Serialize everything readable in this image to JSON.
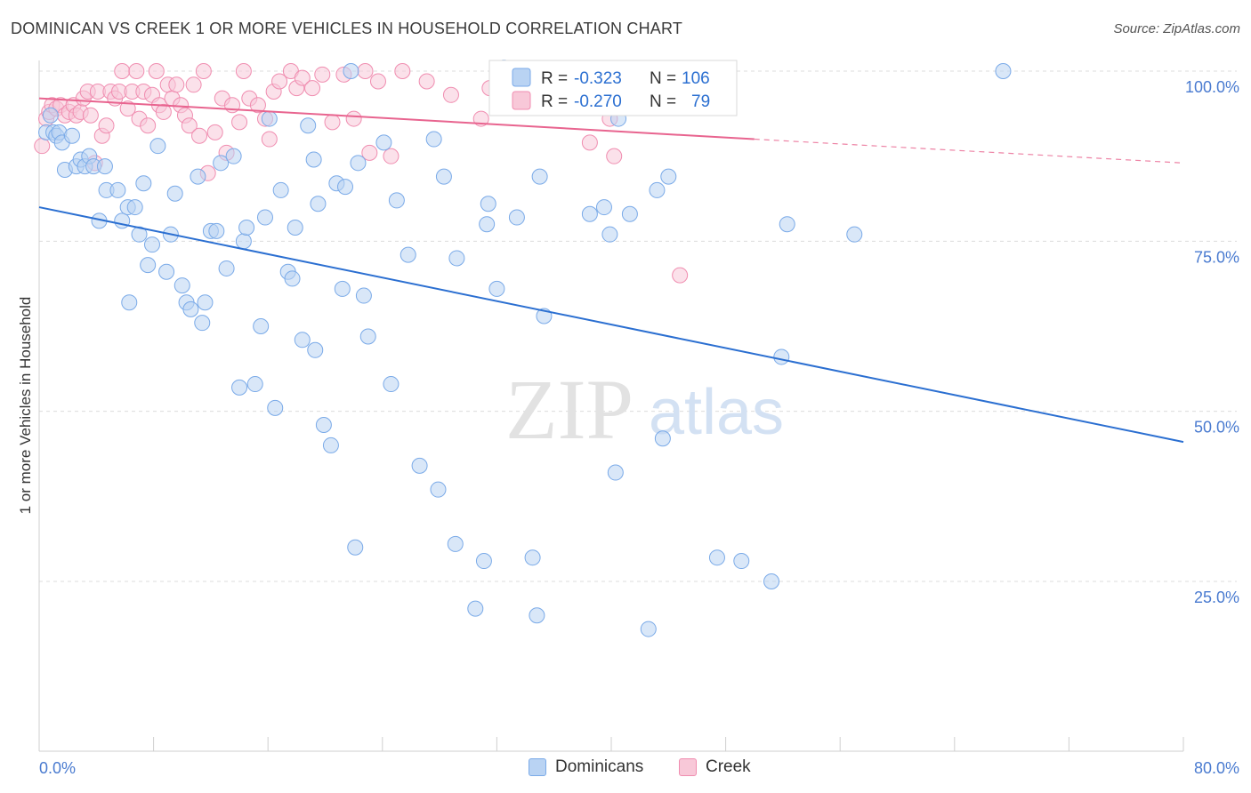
{
  "header": {
    "title": "DOMINICAN VS CREEK 1 OR MORE VEHICLES IN HOUSEHOLD CORRELATION CHART",
    "source": "Source: ZipAtlas.com"
  },
  "watermark": {
    "zip": "ZIP",
    "atlas": "atlas"
  },
  "legend_box": {
    "rows": [
      {
        "r_label": "R =",
        "r_value": "-0.323",
        "n_label": "N =",
        "n_value": "106"
      },
      {
        "r_label": "R =",
        "r_value": "-0.270",
        "n_label": "N =",
        "n_value": "79"
      }
    ]
  },
  "bottom_legend": {
    "items": [
      "Dominicans",
      "Creek"
    ]
  },
  "chart_data": {
    "type": "scatter",
    "title": "DOMINICAN VS CREEK 1 OR MORE VEHICLES IN HOUSEHOLD CORRELATION CHART",
    "xlabel": "",
    "ylabel": "1 or more Vehicles in Household",
    "xlim": [
      0,
      80
    ],
    "ylim": [
      0,
      105
    ],
    "x_tick_labels": [
      "0.0%",
      "80.0%"
    ],
    "y_tick_labels": [
      "100.0%",
      "75.0%",
      "50.0%",
      "25.0%"
    ],
    "y_tick_values": [
      100,
      75,
      50,
      25
    ],
    "grid": true,
    "legend_placement": "top-center",
    "colors": {
      "Dominicans": "#7aaae8",
      "Dominicans_fill": "#b9d3f3",
      "Dominicans_line": "#2b6fd1",
      "Creek": "#f08db0",
      "Creek_fill": "#f8c8d8",
      "Creek_line": "#e8648f",
      "tick_text": "#4a7bd0"
    },
    "series": [
      {
        "name": "Dominicans",
        "r": -0.323,
        "n": 106,
        "trend": {
          "x": [
            0,
            80
          ],
          "y": [
            80,
            45.5
          ]
        },
        "points": [
          [
            0.5,
            91
          ],
          [
            0.8,
            93.5
          ],
          [
            1.0,
            91
          ],
          [
            1.2,
            90.5
          ],
          [
            1.4,
            91
          ],
          [
            1.6,
            89.5
          ],
          [
            1.8,
            85.5
          ],
          [
            2.3,
            90.5
          ],
          [
            2.6,
            86
          ],
          [
            2.9,
            87
          ],
          [
            3.2,
            86
          ],
          [
            3.5,
            87.5
          ],
          [
            3.8,
            86
          ],
          [
            4.2,
            78
          ],
          [
            4.6,
            86
          ],
          [
            4.7,
            82.5
          ],
          [
            5.5,
            82.5
          ],
          [
            5.8,
            78
          ],
          [
            6.2,
            80
          ],
          [
            6.3,
            66
          ],
          [
            6.7,
            80
          ],
          [
            7.0,
            76
          ],
          [
            7.3,
            83.5
          ],
          [
            7.6,
            71.5
          ],
          [
            7.9,
            74.5
          ],
          [
            8.3,
            89
          ],
          [
            8.9,
            70.5
          ],
          [
            9.2,
            76
          ],
          [
            9.5,
            82
          ],
          [
            10.0,
            68.5
          ],
          [
            10.3,
            66
          ],
          [
            10.6,
            65
          ],
          [
            11.1,
            84.5
          ],
          [
            11.4,
            63
          ],
          [
            11.6,
            66
          ],
          [
            12.0,
            76.5
          ],
          [
            12.4,
            76.5
          ],
          [
            12.7,
            86.5
          ],
          [
            13.1,
            71
          ],
          [
            13.6,
            87.5
          ],
          [
            14.0,
            53.5
          ],
          [
            14.3,
            75
          ],
          [
            14.5,
            77
          ],
          [
            15.1,
            54
          ],
          [
            15.5,
            62.5
          ],
          [
            15.8,
            78.5
          ],
          [
            16.1,
            93
          ],
          [
            16.5,
            50.5
          ],
          [
            16.9,
            82.5
          ],
          [
            17.4,
            70.5
          ],
          [
            17.7,
            69.5
          ],
          [
            17.9,
            77
          ],
          [
            18.4,
            60.5
          ],
          [
            18.8,
            92
          ],
          [
            19.2,
            87
          ],
          [
            19.3,
            59
          ],
          [
            19.5,
            80.5
          ],
          [
            19.9,
            48
          ],
          [
            20.4,
            45
          ],
          [
            20.8,
            83.5
          ],
          [
            21.2,
            68
          ],
          [
            21.4,
            83
          ],
          [
            21.8,
            100
          ],
          [
            22.1,
            30
          ],
          [
            22.3,
            86.5
          ],
          [
            22.7,
            67
          ],
          [
            23.0,
            61
          ],
          [
            24.1,
            89.5
          ],
          [
            24.6,
            54
          ],
          [
            25.0,
            81
          ],
          [
            25.8,
            73
          ],
          [
            26.6,
            42
          ],
          [
            27.6,
            90
          ],
          [
            27.9,
            38.5
          ],
          [
            28.3,
            84.5
          ],
          [
            29.1,
            30.5
          ],
          [
            29.2,
            72.5
          ],
          [
            30.5,
            21
          ],
          [
            31.1,
            28
          ],
          [
            31.3,
            77.5
          ],
          [
            31.4,
            80.5
          ],
          [
            32.0,
            68
          ],
          [
            32.5,
            100.5
          ],
          [
            33.4,
            78.5
          ],
          [
            34.5,
            28.5
          ],
          [
            34.8,
            20
          ],
          [
            35.0,
            84.5
          ],
          [
            35.3,
            64
          ],
          [
            38.5,
            79
          ],
          [
            39.5,
            80
          ],
          [
            39.9,
            76
          ],
          [
            40.3,
            41
          ],
          [
            40.5,
            93
          ],
          [
            41.3,
            79
          ],
          [
            42.6,
            18
          ],
          [
            43.2,
            82.5
          ],
          [
            43.6,
            46
          ],
          [
            44.0,
            84.5
          ],
          [
            47.4,
            28.5
          ],
          [
            49.1,
            28
          ],
          [
            51.2,
            25
          ],
          [
            51.9,
            58
          ],
          [
            52.3,
            77.5
          ],
          [
            57.0,
            76
          ],
          [
            67.4,
            100
          ]
        ]
      },
      {
        "name": "Creek",
        "r": -0.27,
        "n": 79,
        "trend_solid": {
          "x": [
            0,
            50
          ],
          "y": [
            96,
            90
          ]
        },
        "trend_dashed": {
          "x": [
            50,
            80
          ],
          "y": [
            90,
            86.5
          ]
        },
        "points": [
          [
            0.2,
            89
          ],
          [
            0.5,
            93
          ],
          [
            0.7,
            94
          ],
          [
            0.9,
            95
          ],
          [
            1.2,
            94.5
          ],
          [
            1.5,
            95
          ],
          [
            1.8,
            93.5
          ],
          [
            2.1,
            94
          ],
          [
            2.4,
            95
          ],
          [
            2.6,
            93.5
          ],
          [
            2.9,
            94
          ],
          [
            3.1,
            96
          ],
          [
            3.4,
            97
          ],
          [
            3.6,
            93.5
          ],
          [
            3.9,
            86.5
          ],
          [
            4.1,
            97
          ],
          [
            4.4,
            90.5
          ],
          [
            4.7,
            92
          ],
          [
            5.0,
            97
          ],
          [
            5.3,
            96
          ],
          [
            5.6,
            97
          ],
          [
            5.8,
            100
          ],
          [
            6.2,
            94.5
          ],
          [
            6.5,
            97
          ],
          [
            6.8,
            100
          ],
          [
            7.0,
            93
          ],
          [
            7.3,
            97
          ],
          [
            7.6,
            92
          ],
          [
            7.9,
            96.5
          ],
          [
            8.2,
            100
          ],
          [
            8.4,
            95
          ],
          [
            8.7,
            94
          ],
          [
            9.0,
            98
          ],
          [
            9.3,
            96
          ],
          [
            9.6,
            98
          ],
          [
            9.9,
            95
          ],
          [
            10.2,
            93.5
          ],
          [
            10.5,
            92
          ],
          [
            10.8,
            98
          ],
          [
            11.2,
            90.5
          ],
          [
            11.5,
            100
          ],
          [
            11.8,
            85
          ],
          [
            12.3,
            91
          ],
          [
            12.8,
            96
          ],
          [
            13.1,
            88
          ],
          [
            13.5,
            95
          ],
          [
            14.0,
            92.5
          ],
          [
            14.3,
            100
          ],
          [
            14.7,
            96
          ],
          [
            15.3,
            95
          ],
          [
            15.8,
            93
          ],
          [
            16.1,
            90
          ],
          [
            16.4,
            97
          ],
          [
            16.8,
            98.5
          ],
          [
            17.6,
            100
          ],
          [
            18.0,
            97.5
          ],
          [
            18.4,
            99
          ],
          [
            19.1,
            97.5
          ],
          [
            19.8,
            99.5
          ],
          [
            20.5,
            92.5
          ],
          [
            21.3,
            99.5
          ],
          [
            22.0,
            93
          ],
          [
            22.8,
            100
          ],
          [
            23.1,
            88
          ],
          [
            23.7,
            98.5
          ],
          [
            24.6,
            87.5
          ],
          [
            25.4,
            100
          ],
          [
            27.1,
            98.5
          ],
          [
            28.8,
            96.5
          ],
          [
            30.9,
            93
          ],
          [
            31.5,
            97.5
          ],
          [
            38.5,
            89.5
          ],
          [
            39.9,
            93
          ],
          [
            40.0,
            98.5
          ],
          [
            40.2,
            87.5
          ],
          [
            44.8,
            70
          ]
        ]
      }
    ]
  }
}
